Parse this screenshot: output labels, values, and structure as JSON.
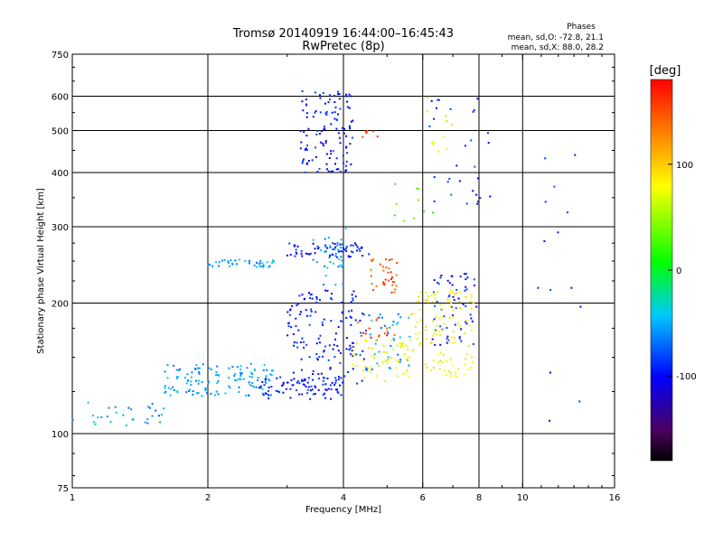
{
  "chart_data": {
    "type": "scatter",
    "title": "Tromsø 20140919 16:44:00–16:45:43",
    "subtitle": "RwPretec (8p)",
    "stats": {
      "heading": "Phases",
      "line1": "mean, sd,O:  -72.8, 21.1",
      "line2": "mean, sd,X:   88.0, 28.2"
    },
    "xlabel": "Frequency [MHz]",
    "ylabel": "Stationary phase Virtual Height [km]",
    "x_scale": "log",
    "y_scale": "log",
    "xlim": [
      1,
      16
    ],
    "ylim": [
      75,
      750
    ],
    "x_ticks": [
      1,
      2,
      4,
      6,
      8,
      10,
      16
    ],
    "x_ticks_minor": [
      3,
      5,
      7,
      9,
      11,
      12,
      13,
      14,
      15
    ],
    "y_ticks": [
      75,
      100,
      200,
      300,
      400,
      500,
      600,
      750
    ],
    "y_ticks_minor": [
      80,
      90,
      125,
      150,
      175,
      225,
      250,
      275,
      350,
      450,
      550,
      650,
      700
    ],
    "grid_x": [
      2,
      4,
      6,
      8,
      10
    ],
    "grid_y": [
      100,
      200,
      300,
      400,
      500,
      600
    ],
    "colorbar": {
      "label": "[deg]",
      "range": [
        -180,
        180
      ],
      "ticks": [
        -100,
        0,
        100
      ],
      "colormap": "rainbow (black-purple-blue-cyan-green-yellow-orange-red)"
    },
    "series": [
      {
        "color_value": -55,
        "clusters": [
          {
            "x": [
              1.0,
              1.6
            ],
            "y": [
              103,
              120
            ],
            "n": 30
          },
          {
            "x": [
              1.6,
              2.8
            ],
            "y": [
              122,
              145
            ],
            "n": 130
          },
          {
            "x": [
              2.0,
              2.8
            ],
            "y": [
              242,
              252
            ],
            "n": 40
          },
          {
            "x": [
              3.6,
              4.0
            ],
            "y": [
              240,
              285
            ],
            "n": 30
          },
          {
            "x": [
              4.5,
              5.7
            ],
            "y": [
              140,
              195
            ],
            "n": 40
          },
          {
            "x": [
              3.4,
              4.1
            ],
            "y": [
              200,
              330
            ],
            "n": 12
          }
        ]
      },
      {
        "color_value": -95,
        "clusters": [
          {
            "x": [
              2.6,
              4.0
            ],
            "y": [
              120,
              135
            ],
            "n": 80
          },
          {
            "x": [
              3.0,
              4.5
            ],
            "y": [
              130,
              215
            ],
            "n": 150
          },
          {
            "x": [
              3.2,
              4.2
            ],
            "y": [
              400,
              620
            ],
            "n": 120
          },
          {
            "x": [
              3.0,
              4.6
            ],
            "y": [
              255,
              275
            ],
            "n": 60
          },
          {
            "x": [
              6.3,
              7.9
            ],
            "y": [
              160,
              235
            ],
            "n": 60
          },
          {
            "x": [
              6.2,
              8.5
            ],
            "y": [
              330,
              600
            ],
            "n": 30
          },
          {
            "x": [
              10.6,
              13.5
            ],
            "y": [
              85,
              460
            ],
            "n": 14
          }
        ]
      },
      {
        "color_value": 80,
        "clusters": [
          {
            "x": [
              4.1,
              5.6
            ],
            "y": [
              132,
              165
            ],
            "n": 60
          },
          {
            "x": [
              5.6,
              7.8
            ],
            "y": [
              135,
              215
            ],
            "n": 120
          },
          {
            "x": [
              6.0,
              7.0
            ],
            "y": [
              440,
              620
            ],
            "n": 12
          }
        ]
      },
      {
        "color_value": 150,
        "clusters": [
          {
            "x": [
              4.6,
              5.3
            ],
            "y": [
              210,
              255
            ],
            "n": 35
          },
          {
            "x": [
              4.3,
              5.2
            ],
            "y": [
              165,
              185
            ],
            "n": 15
          },
          {
            "x": [
              4.4,
              4.8
            ],
            "y": [
              480,
              500
            ],
            "n": 6
          }
        ]
      },
      {
        "color_value": 20,
        "clusters": [
          {
            "x": [
              5.0,
              6.5
            ],
            "y": [
              300,
              380
            ],
            "n": 10
          }
        ]
      }
    ]
  }
}
